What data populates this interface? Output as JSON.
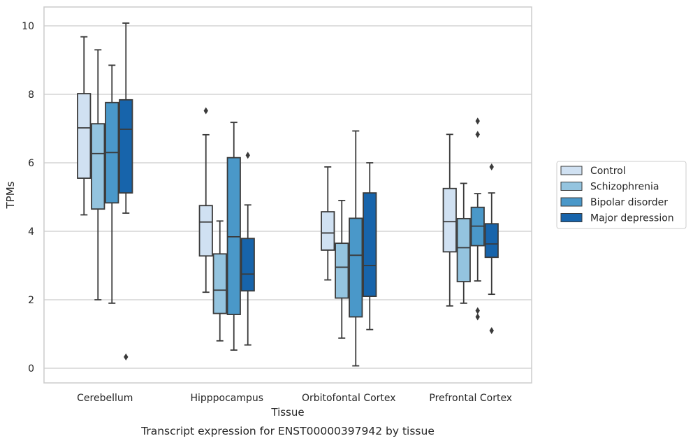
{
  "chart_data": {
    "type": "box",
    "xlabel": "Tissue",
    "ylabel": "TPMs",
    "caption": "Transcript expression for ENST00000397942 by tissue",
    "ylim": [
      -0.4,
      10.6
    ],
    "yticks": [
      0,
      2,
      4,
      6,
      8,
      10
    ],
    "grid": true,
    "legend_position": "right",
    "categories": [
      "Cerebellum",
      "Hipppocampus",
      "Orbitofontal Cortex",
      "Prefrontal Cortex"
    ],
    "series": [
      {
        "name": "Control",
        "color": "#d0e1f2",
        "boxes": [
          {
            "whisker_low": 4.48,
            "q1": 5.55,
            "median": 7.02,
            "q3": 8.02,
            "whisker_high": 9.68,
            "outliers": []
          },
          {
            "whisker_low": 2.22,
            "q1": 3.28,
            "median": 4.27,
            "q3": 4.75,
            "whisker_high": 6.82,
            "outliers": [
              7.52
            ]
          },
          {
            "whisker_low": 2.58,
            "q1": 3.45,
            "median": 3.95,
            "q3": 4.57,
            "whisker_high": 5.88,
            "outliers": []
          },
          {
            "whisker_low": 1.82,
            "q1": 3.4,
            "median": 4.28,
            "q3": 5.25,
            "whisker_high": 6.83,
            "outliers": []
          }
        ]
      },
      {
        "name": "Schizophrenia",
        "color": "#94c4df",
        "boxes": [
          {
            "whisker_low": 2.0,
            "q1": 4.65,
            "median": 6.27,
            "q3": 7.14,
            "whisker_high": 9.3,
            "outliers": []
          },
          {
            "whisker_low": 0.8,
            "q1": 1.6,
            "median": 2.28,
            "q3": 3.34,
            "whisker_high": 4.3,
            "outliers": []
          },
          {
            "whisker_low": 0.88,
            "q1": 2.05,
            "median": 2.95,
            "q3": 3.65,
            "whisker_high": 4.9,
            "outliers": []
          },
          {
            "whisker_low": 1.9,
            "q1": 2.53,
            "median": 3.52,
            "q3": 4.37,
            "whisker_high": 5.4,
            "outliers": []
          }
        ]
      },
      {
        "name": "Bipolar disorder",
        "color": "#4a98c9",
        "boxes": [
          {
            "whisker_low": 1.9,
            "q1": 4.83,
            "median": 6.3,
            "q3": 7.76,
            "whisker_high": 8.85,
            "outliers": []
          },
          {
            "whisker_low": 0.53,
            "q1": 1.57,
            "median": 3.84,
            "q3": 6.15,
            "whisker_high": 7.18,
            "outliers": []
          },
          {
            "whisker_low": 0.07,
            "q1": 1.5,
            "median": 3.3,
            "q3": 4.38,
            "whisker_high": 6.93,
            "outliers": []
          },
          {
            "whisker_low": 2.55,
            "q1": 3.58,
            "median": 4.15,
            "q3": 4.7,
            "whisker_high": 5.1,
            "outliers": [
              7.22,
              6.83,
              1.68,
              1.5
            ]
          }
        ]
      },
      {
        "name": "Major depression",
        "color": "#1764ab",
        "boxes": [
          {
            "whisker_low": 4.53,
            "q1": 5.12,
            "median": 6.98,
            "q3": 7.84,
            "whisker_high": 10.08,
            "outliers": [
              0.33
            ]
          },
          {
            "whisker_low": 0.68,
            "q1": 2.26,
            "median": 2.75,
            "q3": 3.79,
            "whisker_high": 4.77,
            "outliers": [
              6.22
            ]
          },
          {
            "whisker_low": 1.13,
            "q1": 2.1,
            "median": 3.0,
            "q3": 5.12,
            "whisker_high": 6.0,
            "outliers": []
          },
          {
            "whisker_low": 2.16,
            "q1": 3.24,
            "median": 3.63,
            "q3": 4.22,
            "whisker_high": 5.12,
            "outliers": [
              5.88,
              1.1
            ]
          }
        ]
      }
    ]
  }
}
